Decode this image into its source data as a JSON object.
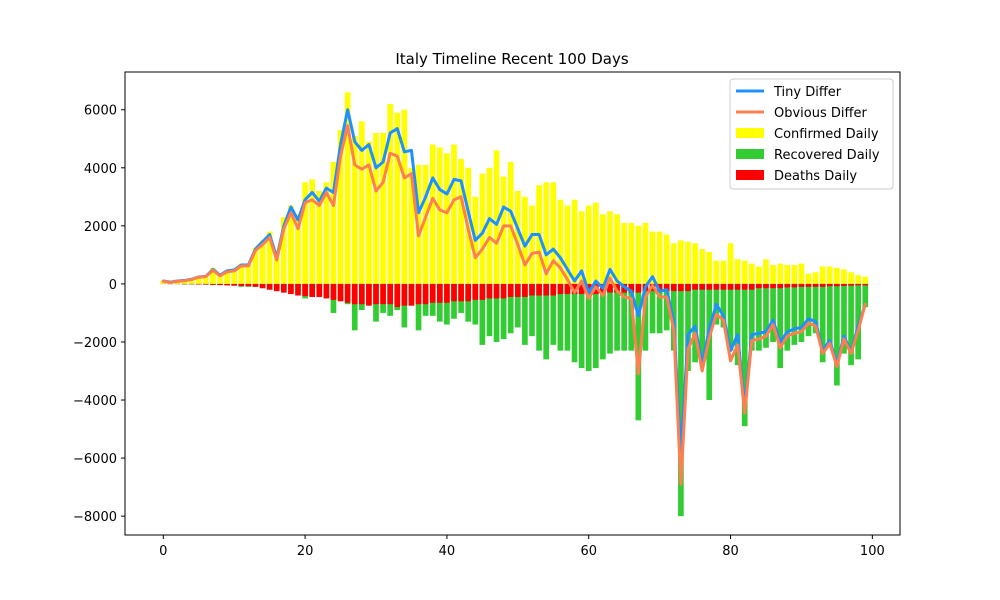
{
  "chart_data": {
    "type": "bar",
    "title": "Italy Timeline Recent 100 Days",
    "xlabel": "",
    "ylabel": "",
    "xlim": [
      -5.4,
      103.9
    ],
    "ylim": [
      -8650,
      7300
    ],
    "x_ticks": [
      0,
      20,
      40,
      60,
      80,
      100
    ],
    "y_ticks": [
      -8000,
      -6000,
      -4000,
      -2000,
      0,
      2000,
      4000,
      6000
    ],
    "y_tick_labels": [
      "−8000",
      "−6000",
      "−4000",
      "−2000",
      "0",
      "2000",
      "4000",
      "6000"
    ],
    "x_tick_labels": [
      "0",
      "20",
      "40",
      "60",
      "80",
      "100"
    ],
    "legend_position": "top-right",
    "x": [
      0,
      1,
      2,
      3,
      4,
      5,
      6,
      7,
      8,
      9,
      10,
      11,
      12,
      13,
      14,
      15,
      16,
      17,
      18,
      19,
      20,
      21,
      22,
      23,
      24,
      25,
      26,
      27,
      28,
      29,
      30,
      31,
      32,
      33,
      34,
      35,
      36,
      37,
      38,
      39,
      40,
      41,
      42,
      43,
      44,
      45,
      46,
      47,
      48,
      49,
      50,
      51,
      52,
      53,
      54,
      55,
      56,
      57,
      58,
      59,
      60,
      61,
      62,
      63,
      64,
      65,
      66,
      67,
      68,
      69,
      70,
      71,
      72,
      73,
      74,
      75,
      76,
      77,
      78,
      79,
      80,
      81,
      82,
      83,
      84,
      85,
      86,
      87,
      88,
      89,
      90,
      91,
      92,
      93,
      94,
      95,
      96,
      97,
      98,
      99
    ],
    "series": [
      {
        "name": "Confirmed Daily",
        "kind": "bar",
        "color": "#ffff00",
        "values": [
          100,
          50,
          80,
          120,
          150,
          250,
          250,
          550,
          300,
          450,
          500,
          700,
          700,
          1250,
          1500,
          1800,
          900,
          2300,
          2700,
          2400,
          3500,
          3600,
          3200,
          3500,
          4200,
          5300,
          6600,
          5100,
          5600,
          4900,
          5200,
          5200,
          6200,
          5900,
          6000,
          4000,
          4100,
          4100,
          4800,
          4700,
          4500,
          4800,
          4300,
          4000,
          3000,
          3800,
          4000,
          4600,
          3700,
          4200,
          3200,
          3000,
          2700,
          3400,
          3500,
          3500,
          2900,
          2700,
          2900,
          2500,
          2700,
          2800,
          2400,
          2500,
          2400,
          2100,
          2100,
          2000,
          2100,
          1800,
          1800,
          1700,
          1400,
          1500,
          1450,
          1400,
          1200,
          1100,
          800,
          800,
          1400,
          850,
          800,
          700,
          600,
          850,
          650,
          700,
          650,
          650,
          700,
          350,
          400,
          600,
          600,
          550,
          500,
          400,
          300,
          250
        ]
      },
      {
        "name": "Recovered Daily",
        "kind": "bar",
        "color": "#32cd32",
        "values": [
          0,
          -10,
          -10,
          -20,
          -20,
          -20,
          -30,
          -40,
          -40,
          -50,
          -60,
          -100,
          -100,
          -100,
          -100,
          -100,
          -100,
          -200,
          -250,
          -300,
          -500,
          -400,
          -400,
          -500,
          -1000,
          -550,
          -700,
          -1600,
          -900,
          -700,
          -1300,
          -1000,
          -1100,
          -900,
          -1500,
          -600,
          -1600,
          -1100,
          -1100,
          -1300,
          -1400,
          -1200,
          -1000,
          -1300,
          -1400,
          -2100,
          -1800,
          -2000,
          -1900,
          -1700,
          -1500,
          -2100,
          -1800,
          -2300,
          -2600,
          -2100,
          -2300,
          -2300,
          -2700,
          -2900,
          -3000,
          -2900,
          -2600,
          -2400,
          -2300,
          -2300,
          -2300,
          -4700,
          -2300,
          -1700,
          -1700,
          -1600,
          -2300,
          -8000,
          -3000,
          -2700,
          -2500,
          -4000,
          -1400,
          -1500,
          -2300,
          -2800,
          -4900,
          -2300,
          -2300,
          -2200,
          -2000,
          -2900,
          -2300,
          -2100,
          -2000,
          -1800,
          -1700,
          -2700,
          -2100,
          -3500,
          -2400,
          -2800,
          -2600,
          -800
        ]
      },
      {
        "name": "Deaths Daily",
        "kind": "bar",
        "color": "#ff0000",
        "values": [
          -5,
          -5,
          -5,
          -10,
          -10,
          -20,
          -20,
          -30,
          -40,
          -50,
          -60,
          -70,
          -80,
          -100,
          -150,
          -200,
          -250,
          -300,
          -350,
          -400,
          -420,
          -450,
          -450,
          -500,
          -550,
          -600,
          -650,
          -700,
          -700,
          -750,
          -700,
          -700,
          -700,
          -800,
          -750,
          -750,
          -700,
          -700,
          -650,
          -650,
          -650,
          -600,
          -600,
          -600,
          -550,
          -550,
          -500,
          -500,
          -500,
          -450,
          -450,
          -450,
          -400,
          -400,
          -400,
          -400,
          -350,
          -350,
          -350,
          -350,
          -350,
          -350,
          -350,
          -300,
          -300,
          -300,
          -300,
          -300,
          -250,
          -250,
          -250,
          -250,
          -250,
          -250,
          -250,
          -200,
          -200,
          -200,
          -200,
          -200,
          -200,
          -200,
          -200,
          -200,
          -150,
          -150,
          -150,
          -150,
          -120,
          -120,
          -100,
          -100,
          -100,
          -100,
          -80,
          -80,
          -70,
          -60,
          -50,
          -50
        ]
      },
      {
        "name": "Tiny Differ",
        "kind": "line",
        "color": "#1e90ff",
        "values": [
          100,
          60,
          100,
          120,
          160,
          240,
          260,
          500,
          300,
          450,
          480,
          650,
          650,
          1200,
          1450,
          1700,
          900,
          2000,
          2650,
          2200,
          2900,
          3150,
          2850,
          3300,
          3150,
          4800,
          6000,
          4900,
          4600,
          4800,
          4000,
          4200,
          5200,
          5350,
          4550,
          4600,
          2450,
          3000,
          3650,
          3250,
          3100,
          3600,
          3550,
          2500,
          1500,
          1750,
          2250,
          2050,
          2650,
          2500,
          1900,
          1300,
          1700,
          1700,
          1000,
          1200,
          900,
          500,
          100,
          450,
          -300,
          100,
          -150,
          500,
          100,
          -100,
          -250,
          -1100,
          -100,
          250,
          -250,
          -200,
          -1300,
          -5900,
          -1750,
          -1450,
          -2750,
          -1550,
          -700,
          -1100,
          -2300,
          -1750,
          -4250,
          -1750,
          -1700,
          -1650,
          -1250,
          -2000,
          -1650,
          -1550,
          -1500,
          -1200,
          -1300,
          -2300,
          -1950,
          -2750,
          -1800,
          -2350,
          -1450,
          -700
        ]
      },
      {
        "name": "Obvious Differ",
        "kind": "line",
        "color": "#ff7f50",
        "values": [
          90,
          50,
          90,
          110,
          150,
          230,
          250,
          470,
          280,
          420,
          450,
          620,
          620,
          1150,
          1350,
          1600,
          820,
          1900,
          2450,
          1900,
          2800,
          2900,
          2700,
          3150,
          2700,
          4400,
          5450,
          4100,
          3950,
          4100,
          3200,
          3500,
          4500,
          4400,
          3650,
          3800,
          1650,
          2300,
          2950,
          2550,
          2450,
          2900,
          3000,
          1900,
          900,
          1200,
          1600,
          1400,
          2000,
          2000,
          1350,
          650,
          1050,
          1100,
          350,
          800,
          550,
          150,
          -300,
          100,
          -500,
          -100,
          -400,
          200,
          -250,
          -450,
          -500,
          -3100,
          -450,
          -50,
          -450,
          -450,
          -1600,
          -6900,
          -2250,
          -1700,
          -3000,
          -1850,
          -1050,
          -1250,
          -2650,
          -2100,
          -4450,
          -1950,
          -1900,
          -1800,
          -1400,
          -2200,
          -1800,
          -1700,
          -1650,
          -1350,
          -1450,
          -2400,
          -2050,
          -2850,
          -1900,
          -2400,
          -1600,
          -700
        ]
      }
    ]
  }
}
